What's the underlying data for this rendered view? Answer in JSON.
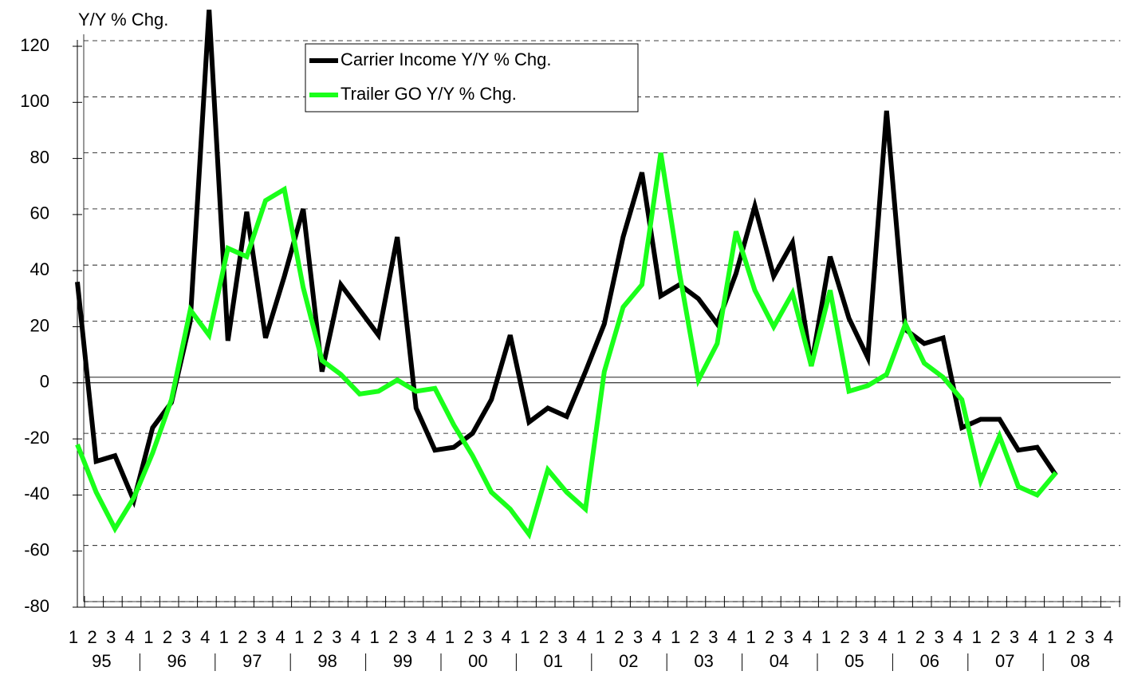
{
  "chart_data": {
    "type": "line",
    "y_axis_label": "Y/Y % Chg.",
    "categories": [
      "1",
      "2",
      "3",
      "4",
      "1",
      "2",
      "3",
      "4",
      "1",
      "2",
      "3",
      "4",
      "1",
      "2",
      "3",
      "4",
      "1",
      "2",
      "3",
      "4",
      "1",
      "2",
      "3",
      "4",
      "1",
      "2",
      "3",
      "4",
      "1",
      "2",
      "3",
      "4",
      "1",
      "2",
      "3",
      "4",
      "1",
      "2",
      "3",
      "4",
      "1",
      "2",
      "3",
      "4",
      "1",
      "2",
      "3",
      "4",
      "1",
      "2",
      "3",
      "4",
      "1",
      "2",
      "3",
      "4"
    ],
    "year_labels": [
      "95",
      "96",
      "97",
      "98",
      "99",
      "00",
      "01",
      "02",
      "03",
      "04",
      "05",
      "06",
      "07",
      "08"
    ],
    "series": [
      {
        "name": "Carrier Income Y/Y % Chg.",
        "color": "#000000",
        "values": [
          36,
          -28,
          -26,
          -42,
          -16,
          -7,
          22,
          133,
          15,
          61,
          16,
          38,
          62,
          4,
          35,
          26,
          17,
          52,
          -9,
          -24,
          -23,
          -18,
          -6,
          17,
          -14,
          -9,
          -12,
          4,
          21,
          52,
          75,
          31,
          35,
          30,
          21,
          39,
          63,
          38,
          50,
          6,
          45,
          23,
          9,
          97,
          19,
          14,
          16,
          -16,
          -13,
          -13,
          -24,
          -23,
          -33,
          null,
          null,
          null
        ]
      },
      {
        "name": "Trailer GO Y/Y % Chg.",
        "color": "#1aff1a",
        "values": [
          -22,
          -39,
          -52,
          -41,
          -25,
          -6,
          26,
          17,
          48,
          45,
          65,
          69,
          34,
          8,
          3,
          -4,
          -3,
          1,
          -3,
          -2,
          -15,
          -26,
          -39,
          -45,
          -54,
          -31,
          -39,
          -45,
          4,
          27,
          35,
          82,
          39,
          1,
          14,
          54,
          33,
          20,
          32,
          6,
          33,
          -3,
          -1,
          3,
          21,
          7,
          2,
          -6,
          -35,
          -19,
          -37,
          -40,
          -32,
          null,
          null,
          null
        ]
      }
    ],
    "ylim": [
      -80,
      120
    ],
    "yticks": [
      -80,
      -60,
      -40,
      -20,
      0,
      20,
      40,
      60,
      80,
      100,
      120
    ],
    "grid": true
  }
}
